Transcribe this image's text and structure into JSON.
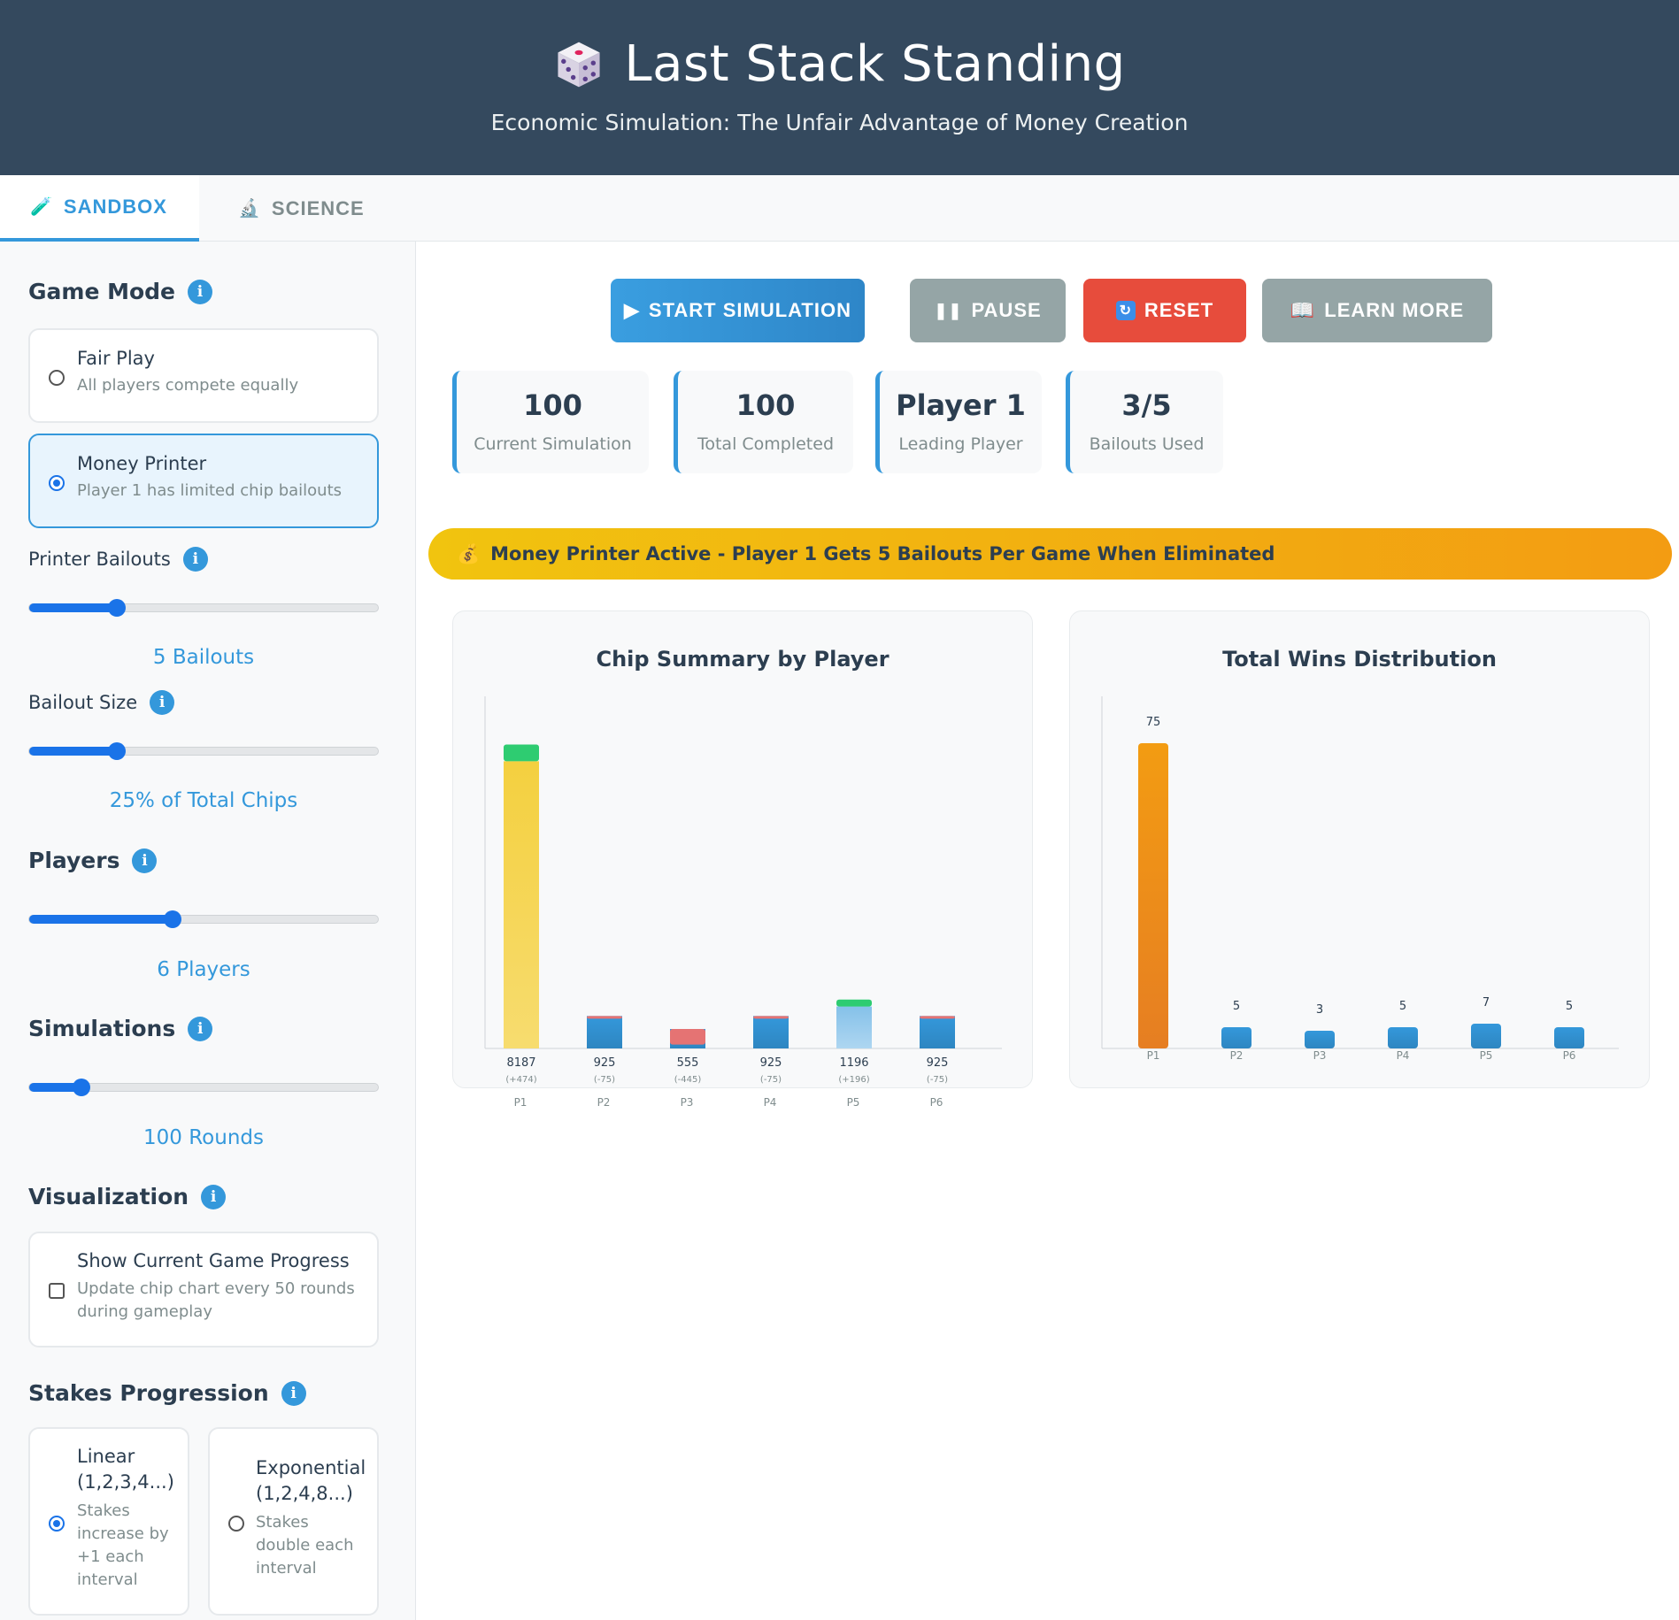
{
  "header": {
    "title": "Last Stack Standing",
    "subtitle": "Economic Simulation: The Unfair Advantage of Money Creation"
  },
  "tabs": [
    {
      "label": "SANDBOX",
      "icon": "test-tube-icon",
      "active": true
    },
    {
      "label": "SCIENCE",
      "icon": "microscope-icon",
      "active": false
    }
  ],
  "sidebar": {
    "game_mode": {
      "title": "Game Mode",
      "options": [
        {
          "title": "Fair Play",
          "desc": "All players compete equally",
          "selected": false
        },
        {
          "title": "Money Printer",
          "desc": "Player 1 has limited chip bailouts",
          "selected": true
        }
      ]
    },
    "printer_bailouts": {
      "label": "Printer Bailouts",
      "value_text": "5 Bailouts",
      "fraction": 0.25
    },
    "bailout_size": {
      "label": "Bailout Size",
      "value_text": "25% of Total Chips",
      "fraction": 0.25
    },
    "players": {
      "title": "Players",
      "value_text": "6 Players",
      "fraction": 0.41
    },
    "simulations": {
      "title": "Simulations",
      "value_text": "100 Rounds",
      "fraction": 0.15
    },
    "visualization": {
      "title": "Visualization",
      "option_title": "Show Current Game Progress",
      "option_desc_1": "Update chip chart every 50 rounds",
      "option_desc_2": "during gameplay",
      "checked": false
    },
    "stakes": {
      "title": "Stakes Progression",
      "linear": {
        "title_1": "Linear",
        "title_2": "(1,2,3,4...)",
        "desc_1": "Stakes",
        "desc_2": "increase by",
        "desc_3": "+1 each",
        "desc_4": "interval",
        "selected": true
      },
      "exponential": {
        "title_1": "Exponential",
        "title_2": "(1,2,4,8...)",
        "desc_1": "Stakes",
        "desc_2": "double each",
        "desc_3": "interval",
        "selected": false
      }
    }
  },
  "controls": {
    "start": {
      "label": "START SIMULATION",
      "icon": "play-icon"
    },
    "pause": {
      "label": "PAUSE",
      "icon": "pause-icon"
    },
    "reset": {
      "label": "RESET",
      "icon": "refresh-icon"
    },
    "learn": {
      "label": "LEARN MORE",
      "icon": "book-icon"
    }
  },
  "stats": [
    {
      "value": "100",
      "label": "Current Simulation"
    },
    {
      "value": "100",
      "label": "Total Completed"
    },
    {
      "value": "Player 1",
      "label": "Leading Player"
    },
    {
      "value": "3/5",
      "label": "Bailouts Used"
    }
  ],
  "banner": {
    "icon": "money-bag-icon",
    "text": "Money Printer Active - Player 1 Gets 5 Bailouts Per Game When Eliminated"
  },
  "colors": {
    "accent": "#3498db",
    "header_bg": "#34495e",
    "danger": "#e74c3c",
    "muted": "#95a5a6",
    "gold": "#f1c40f",
    "green": "#2ecc71"
  },
  "chart_data": [
    {
      "type": "bar",
      "title": "Chip Summary by Player",
      "categories": [
        "P1",
        "P2",
        "P3",
        "P4",
        "P5",
        "P6"
      ],
      "values": [
        8187,
        925,
        555,
        925,
        1196,
        925
      ],
      "change_labels": [
        "(+474)",
        "(-75)",
        "(-445)",
        "(-75)",
        "(+196)",
        "(-75)"
      ],
      "changes": [
        474,
        -75,
        -445,
        -75,
        196,
        -75
      ],
      "ylim": [
        0,
        8700
      ]
    },
    {
      "type": "bar",
      "title": "Total Wins Distribution",
      "categories": [
        "P1",
        "P2",
        "P3",
        "P4",
        "P5",
        "P6"
      ],
      "values": [
        75,
        5,
        3,
        5,
        7,
        5
      ],
      "ylim": [
        0,
        78
      ]
    }
  ]
}
